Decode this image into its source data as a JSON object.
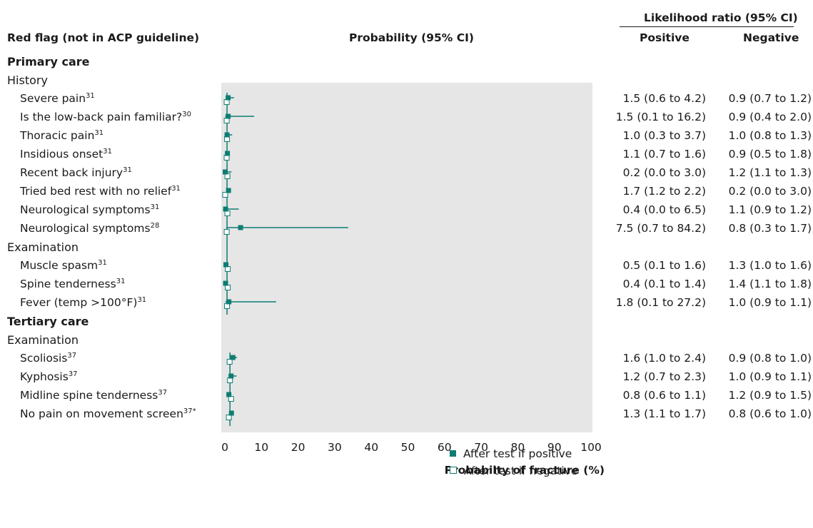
{
  "header": {
    "red_flag_title": "Red flag (not in ACP guideline)",
    "probability_title": "Probability (95% CI)",
    "lr_title": "Likelihood ratio (95% CI)",
    "positive_title": "Positive",
    "negative_title": "Negative"
  },
  "sections": [
    {
      "label": "Primary care",
      "groups": [
        {
          "label": "History",
          "rows": [
            {
              "name": "Severe pain",
              "ref": "31",
              "lr_pos": "1.5 (0.6 to 4.2)",
              "lr_neg": "0.9 (0.7 to 1.2)"
            },
            {
              "name": "Is the low-back pain familiar?",
              "ref": "30",
              "lr_pos": "1.5 (0.1 to 16.2)",
              "lr_neg": "0.9 (0.4 to 2.0)"
            },
            {
              "name": "Thoracic pain",
              "ref": "31",
              "lr_pos": "1.0 (0.3 to 3.7)",
              "lr_neg": "1.0 (0.8 to 1.3)"
            },
            {
              "name": "Insidious onset",
              "ref": "31",
              "lr_pos": "1.1 (0.7 to 1.6)",
              "lr_neg": "0.9 (0.5 to 1.8)"
            },
            {
              "name": "Recent back injury",
              "ref": "31",
              "lr_pos": "0.2 (0.0 to 3.0)",
              "lr_neg": "1.2 (1.1 to 1.3)"
            },
            {
              "name": "Tried bed rest with no relief",
              "ref": "31",
              "lr_pos": "1.7 (1.2 to 2.2)",
              "lr_neg": "0.2 (0.0 to 3.0)"
            },
            {
              "name": "Neurological symptoms",
              "ref": "31",
              "lr_pos": "0.4 (0.0 to 6.5)",
              "lr_neg": "1.1 (0.9 to 1.2)"
            },
            {
              "name": "Neurological symptoms",
              "ref": "28",
              "lr_pos": "7.5 (0.7 to 84.2)",
              "lr_neg": "0.8 (0.3 to 1.7)"
            }
          ]
        },
        {
          "label": "Examination",
          "rows": [
            {
              "name": "Muscle spasm",
              "ref": "31",
              "lr_pos": "0.5 (0.1 to 1.6)",
              "lr_neg": "1.3 (1.0 to 1.6)"
            },
            {
              "name": "Spine tenderness",
              "ref": "31",
              "lr_pos": "0.4 (0.1 to 1.4)",
              "lr_neg": "1.4 (1.1 to 1.8)"
            },
            {
              "name": "Fever (temp >100°F)",
              "ref": "31",
              "lr_pos": "1.8 (0.1 to 27.2)",
              "lr_neg": "1.0 (0.9 to 1.1)"
            }
          ]
        }
      ]
    },
    {
      "label": "Tertiary care",
      "groups": [
        {
          "label": "Examination",
          "rows": [
            {
              "name": "Scoliosis",
              "ref": "37",
              "lr_pos": "1.6 (1.0 to 2.4)",
              "lr_neg": "0.9 (0.8 to 1.0)"
            },
            {
              "name": "Kyphosis",
              "ref": "37",
              "lr_pos": "1.2 (0.7 to 2.3)",
              "lr_neg": "1.0 (0.9 to 1.1)"
            },
            {
              "name": "Midline spine tenderness",
              "ref": "37",
              "lr_pos": "0.8 (0.6 to 1.1)",
              "lr_neg": "1.2 (0.9 to 1.5)"
            },
            {
              "name": "No pain on movement screen",
              "ref": "37*",
              "lr_pos": "1.3 (1.1 to 1.7)",
              "lr_neg": "0.8 (0.6 to 1.0)"
            }
          ]
        }
      ]
    }
  ],
  "legend": {
    "positive": "After test if positive",
    "negative": "After test if negative"
  },
  "colors": {
    "accent": "#0d7d73",
    "panel": "#e6e6e6",
    "text": "#1a1a1a"
  },
  "chart_data": {
    "type": "scatter",
    "xlabel": "Probabilty of fracture (%)",
    "xlim": [
      0,
      100
    ],
    "x_ticks": [
      0,
      10,
      20,
      30,
      40,
      50,
      60,
      70,
      80,
      90,
      100
    ],
    "pretest": {
      "primary_care": 0.6,
      "tertiary_care": 1.4
    },
    "series": [
      {
        "name": "After test if positive",
        "marker": "filled-square",
        "points": [
          {
            "row": 0,
            "x": 0.9,
            "ci": [
              0.4,
              2.5
            ]
          },
          {
            "row": 1,
            "x": 0.9,
            "ci": [
              0.1,
              8.0
            ]
          },
          {
            "row": 2,
            "x": 0.6,
            "ci": [
              0.2,
              2.0
            ]
          },
          {
            "row": 3,
            "x": 0.7,
            "ci": [
              0.4,
              1.0
            ]
          },
          {
            "row": 4,
            "x": 0.1,
            "ci": [
              0.0,
              1.8
            ]
          },
          {
            "row": 5,
            "x": 1.0,
            "ci": [
              0.7,
              1.3
            ]
          },
          {
            "row": 6,
            "x": 0.2,
            "ci": [
              0.0,
              3.8
            ]
          },
          {
            "row": 7,
            "x": 4.3,
            "ci": [
              0.4,
              33.7
            ]
          },
          {
            "row": 8,
            "x": 0.3,
            "ci": [
              0.1,
              1.0
            ]
          },
          {
            "row": 9,
            "x": 0.2,
            "ci": [
              0.1,
              0.8
            ]
          },
          {
            "row": 10,
            "x": 1.1,
            "ci": [
              0.1,
              14.0
            ]
          },
          {
            "row": 11,
            "x": 2.2,
            "ci": [
              1.4,
              3.3
            ]
          },
          {
            "row": 12,
            "x": 1.7,
            "ci": [
              1.0,
              3.2
            ]
          },
          {
            "row": 13,
            "x": 1.1,
            "ci": [
              0.8,
              1.5
            ]
          },
          {
            "row": 14,
            "x": 1.8,
            "ci": [
              1.5,
              2.3
            ]
          }
        ]
      },
      {
        "name": "After test if negative",
        "marker": "open-square",
        "points": [
          {
            "row": 0,
            "x": 0.5
          },
          {
            "row": 1,
            "x": 0.5
          },
          {
            "row": 2,
            "x": 0.6
          },
          {
            "row": 3,
            "x": 0.5
          },
          {
            "row": 4,
            "x": 0.7
          },
          {
            "row": 5,
            "x": 0.1
          },
          {
            "row": 6,
            "x": 0.7
          },
          {
            "row": 7,
            "x": 0.5
          },
          {
            "row": 8,
            "x": 0.8
          },
          {
            "row": 9,
            "x": 0.8
          },
          {
            "row": 10,
            "x": 0.6
          },
          {
            "row": 11,
            "x": 1.3
          },
          {
            "row": 12,
            "x": 1.4
          },
          {
            "row": 13,
            "x": 1.7
          },
          {
            "row": 14,
            "x": 1.1
          }
        ]
      }
    ]
  }
}
